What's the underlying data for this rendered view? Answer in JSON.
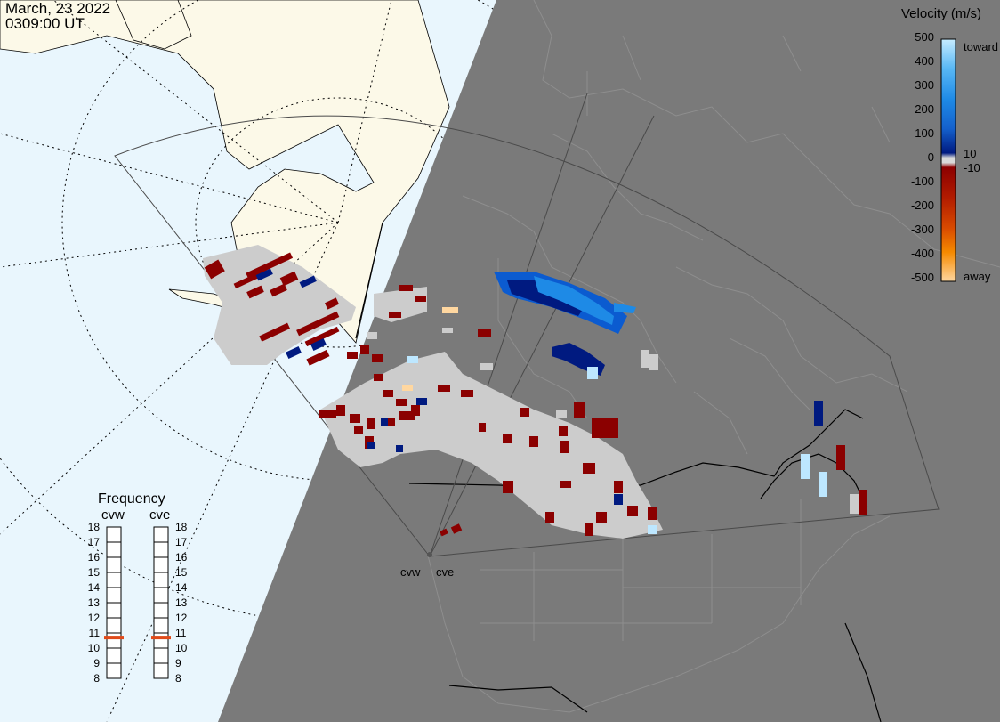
{
  "header": {
    "date": "March, 23 2022",
    "time": "0309:00 UT"
  },
  "legend": {
    "title": "Velocity (m/s)",
    "ticks": [
      "500",
      "400",
      "300",
      "200",
      "100",
      "0",
      "-100",
      "-200",
      "-300",
      "-400",
      "-500"
    ],
    "toward_label": "toward",
    "away_label": "away",
    "threshold_pos": "10",
    "threshold_neg": "-10",
    "gradient_colors": [
      "#c6ecff",
      "#59b8f5",
      "#1e8ae6",
      "#1460cc",
      "#0a3aa8",
      "#001a80",
      "#d9d9d9",
      "#8c0000",
      "#b01a00",
      "#d84a00",
      "#f58a00",
      "#ffd7a0"
    ]
  },
  "frequency": {
    "title": "Frequency",
    "radars": [
      {
        "name": "cvw",
        "selected_mhz": 10.7
      },
      {
        "name": "cve",
        "selected_mhz": 10.7
      }
    ],
    "scale": [
      "18",
      "17",
      "16",
      "15",
      "14",
      "13",
      "12",
      "11",
      "10",
      "9",
      "8"
    ],
    "marker_color": "#e04a1a"
  },
  "sites": [
    {
      "name": "cvw"
    },
    {
      "name": "cve"
    }
  ],
  "colors": {
    "ocean_day": "#e9f6fd",
    "land_day": "#fcf9e8",
    "night": "#7a7a7a",
    "ground_scatter": "#cccccc",
    "away_dark_red": "#8b0000",
    "toward_dark_blue": "#001a80",
    "toward_blue": "#0b5bd0"
  }
}
